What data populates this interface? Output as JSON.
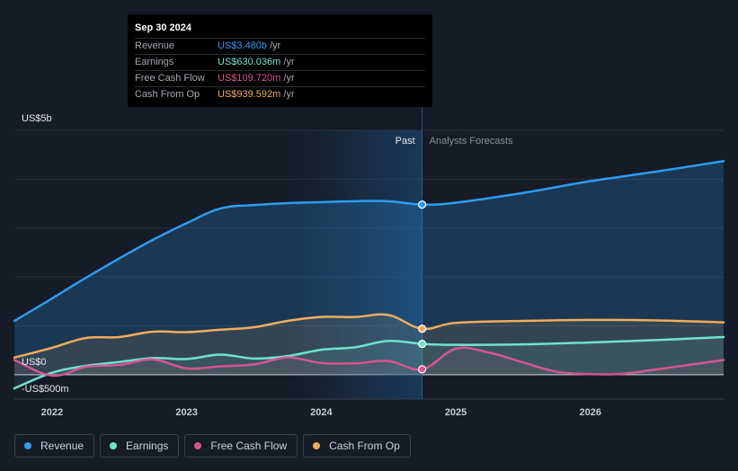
{
  "chart_data": {
    "type": "area",
    "ylabel_top": "US$5b",
    "y_zero_label": "US$0",
    "y_bottom_label": "-US$500m",
    "ylim": [
      -500,
      5000
    ],
    "xlim": [
      2021.72,
      2026.99
    ],
    "x_ticks": [
      2022,
      2023,
      2024,
      2025,
      2026
    ],
    "x_tick_labels": [
      "2022",
      "2023",
      "2024",
      "2025",
      "2026"
    ],
    "past_label": "Past",
    "forecast_label": "Analysts Forecasts",
    "split_x": 2024.75,
    "highlight_start_x": 2023.75,
    "grid": true,
    "series": [
      {
        "name": "Revenue",
        "color": "#2d9cf0",
        "x": [
          2021.72,
          2022.0,
          2022.25,
          2022.5,
          2022.75,
          2023.0,
          2023.25,
          2023.5,
          2023.75,
          2024.0,
          2024.25,
          2024.5,
          2024.75,
          2025.0,
          2025.5,
          2026.0,
          2026.5,
          2026.99
        ],
        "values": [
          1100,
          1560,
          1980,
          2380,
          2760,
          3100,
          3400,
          3470,
          3510,
          3530,
          3550,
          3550,
          3480,
          3520,
          3720,
          3960,
          4160,
          4370
        ]
      },
      {
        "name": "Earnings",
        "color": "#6fe3cd",
        "x": [
          2021.72,
          2022.0,
          2022.25,
          2022.5,
          2022.75,
          2023.0,
          2023.25,
          2023.5,
          2023.75,
          2024.0,
          2024.25,
          2024.5,
          2024.75,
          2025.0,
          2025.5,
          2026.0,
          2026.5,
          2026.99
        ],
        "values": [
          -280,
          40,
          180,
          260,
          340,
          320,
          410,
          330,
          380,
          510,
          560,
          690,
          630,
          610,
          620,
          660,
          710,
          770
        ]
      },
      {
        "name": "Free Cash Flow",
        "color": "#d6558f",
        "x": [
          2021.72,
          2022.0,
          2022.25,
          2022.5,
          2022.75,
          2023.0,
          2023.25,
          2023.5,
          2023.75,
          2024.0,
          2024.25,
          2024.5,
          2024.75,
          2025.0,
          2025.25,
          2025.5,
          2025.75,
          2026.0,
          2026.25,
          2026.5,
          2026.99
        ],
        "values": [
          300,
          -20,
          160,
          200,
          310,
          130,
          170,
          210,
          350,
          240,
          230,
          280,
          110,
          530,
          450,
          250,
          60,
          10,
          20,
          110,
          300
        ]
      },
      {
        "name": "Cash From Op",
        "color": "#f0ad5e",
        "x": [
          2021.72,
          2022.0,
          2022.25,
          2022.5,
          2022.75,
          2023.0,
          2023.25,
          2023.5,
          2023.75,
          2024.0,
          2024.25,
          2024.5,
          2024.75,
          2025.0,
          2025.5,
          2026.0,
          2026.5,
          2026.99
        ],
        "values": [
          350,
          550,
          750,
          770,
          880,
          870,
          920,
          970,
          1100,
          1180,
          1180,
          1220,
          940,
          1060,
          1100,
          1120,
          1110,
          1070
        ]
      }
    ]
  },
  "tooltip": {
    "date": "Sep 30 2024",
    "rows": [
      {
        "label": "Revenue",
        "value": "US$3.480b",
        "unit": "/yr",
        "color": "#2d9cf0"
      },
      {
        "label": "Earnings",
        "value": "US$630.036m",
        "unit": "/yr",
        "color": "#6fe3cd"
      },
      {
        "label": "Free Cash Flow",
        "value": "US$109.720m",
        "unit": "/yr",
        "color": "#d6558f"
      },
      {
        "label": "Cash From Op",
        "value": "US$939.592m",
        "unit": "/yr",
        "color": "#f0ad5e"
      }
    ]
  },
  "legend": [
    {
      "label": "Revenue",
      "color": "#2d9cf0"
    },
    {
      "label": "Earnings",
      "color": "#6fe3cd"
    },
    {
      "label": "Free Cash Flow",
      "color": "#d6558f"
    },
    {
      "label": "Cash From Op",
      "color": "#f0ad5e"
    }
  ]
}
